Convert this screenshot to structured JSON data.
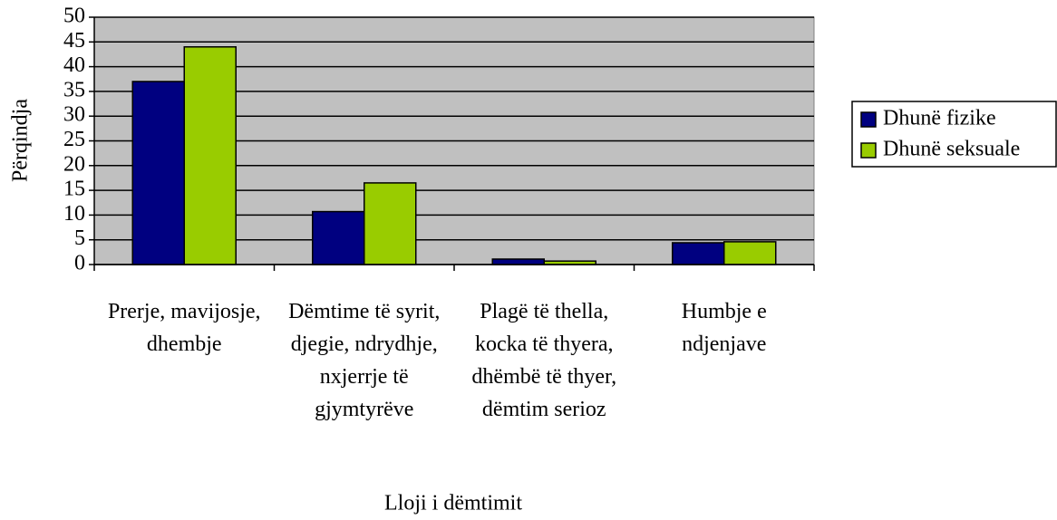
{
  "chart_data": {
    "type": "bar",
    "y_label": "Përqindja",
    "x_label": "Lloji i dëmtimit",
    "categories": [
      "Prerje, mavijosje, dhembje",
      "Dëmtime të syrit, djegie, ndrydhje, nxjerrje të gjymtyrëve",
      "Plagë të thella, kocka të thyera, dhëmbë të thyer, dëmtim serioz",
      "Humbje e ndjenjave"
    ],
    "series": [
      {
        "name": "Dhunë fizike",
        "color": "#000080",
        "values": [
          37,
          10.7,
          1.1,
          4.4
        ]
      },
      {
        "name": "Dhunë seksuale",
        "color": "#99cc00",
        "values": [
          44,
          16.5,
          0.7,
          4.6
        ]
      }
    ],
    "ylim": [
      0,
      50
    ],
    "yticks": [
      0,
      5,
      10,
      15,
      20,
      25,
      30,
      35,
      40,
      45,
      50
    ],
    "grid": true,
    "legend": "right"
  }
}
